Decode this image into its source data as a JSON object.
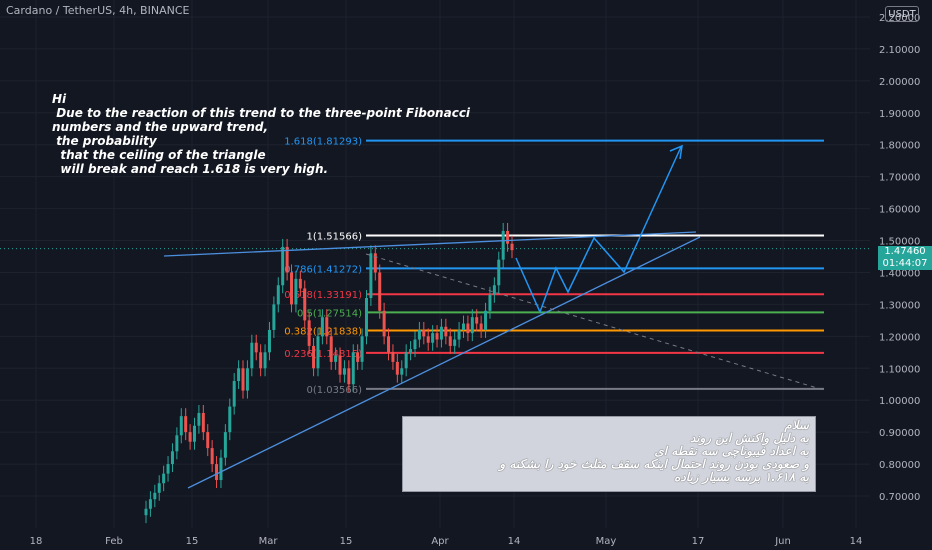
{
  "header": {
    "title": "Cardano / TetherUS, 4h, BINANCE"
  },
  "currency": "USDT",
  "price_tag": {
    "price": "1.47460",
    "countdown": "01:44:07"
  },
  "colors": {
    "bg": "#131722",
    "up": "#26a69a",
    "down": "#ef5350",
    "trend": "#4c8fde"
  },
  "note_en": "Hi\n Due to the reaction of this trend to the three-point Fibonacci\nnumbers and the upward trend,\n the probability\n  that the ceiling of the triangle\n  will break and reach 1.618 is very high.",
  "note_fa": "سلام\nبه دلیل واکنش این روند\nبه اعداد فیبوناچی سه نقطه ای\nو صعودی بودن روند احتمال اینکه سقف مثلث خود را بشکنه و\nبه ۱.۶۱۸ برسه بسیار زیاده",
  "chart_data": {
    "type": "candlestick",
    "title": "Cardano / TetherUS, 4h, BINANCE",
    "ylim": [
      0.64,
      2.24
    ],
    "y_ticks": [
      "0.70000",
      "0.80000",
      "0.90000",
      "1.00000",
      "1.10000",
      "1.20000",
      "1.30000",
      "1.40000",
      "1.50000",
      "1.60000",
      "1.70000",
      "1.80000",
      "1.90000",
      "2.00000",
      "2.10000",
      "2.20000"
    ],
    "x_ticks": [
      "18",
      "Feb",
      "15",
      "Mar",
      "15",
      "Apr",
      "14",
      "May",
      "17",
      "Jun",
      "14"
    ],
    "fib_levels": [
      {
        "label": "1.618(1.81293)",
        "value": 1.81293,
        "color": "#2196f3"
      },
      {
        "label": "1(1.51566)",
        "value": 1.51566,
        "color": "#ffffff"
      },
      {
        "label": "0.786(1.41272)",
        "value": 1.41272,
        "color": "#2196f3"
      },
      {
        "label": "0.618(1.33191)",
        "value": 1.33191,
        "color": "#f23645"
      },
      {
        "label": "0.5(1.27514)",
        "value": 1.27514,
        "color": "#4caf50"
      },
      {
        "label": "0.382(1.21838)",
        "value": 1.21838,
        "color": "#ff9800"
      },
      {
        "label": "0.236(1.14815)",
        "value": 1.14815,
        "color": "#f23645"
      },
      {
        "label": "0(1.03566)",
        "value": 1.03566,
        "color": "#787b86"
      }
    ],
    "last_price": 1.4746,
    "candles_close": [
      0.66,
      0.69,
      0.71,
      0.74,
      0.77,
      0.8,
      0.84,
      0.89,
      0.95,
      0.9,
      0.87,
      0.92,
      0.96,
      0.9,
      0.85,
      0.8,
      0.75,
      0.82,
      0.9,
      0.98,
      1.06,
      1.1,
      1.03,
      1.1,
      1.18,
      1.15,
      1.1,
      1.15,
      1.22,
      1.3,
      1.36,
      1.48,
      1.4,
      1.3,
      1.38,
      1.35,
      1.25,
      1.17,
      1.1,
      1.2,
      1.26,
      1.2,
      1.12,
      1.14,
      1.08,
      1.1,
      1.05,
      1.15,
      1.12,
      1.2,
      1.32,
      1.46,
      1.4,
      1.28,
      1.2,
      1.15,
      1.12,
      1.08,
      1.1,
      1.15,
      1.16,
      1.19,
      1.22,
      1.2,
      1.18,
      1.21,
      1.19,
      1.23,
      1.2,
      1.17,
      1.19,
      1.22,
      1.24,
      1.21,
      1.26,
      1.24,
      1.22,
      1.28,
      1.33,
      1.36,
      1.44,
      1.53,
      1.49,
      1.47
    ]
  }
}
